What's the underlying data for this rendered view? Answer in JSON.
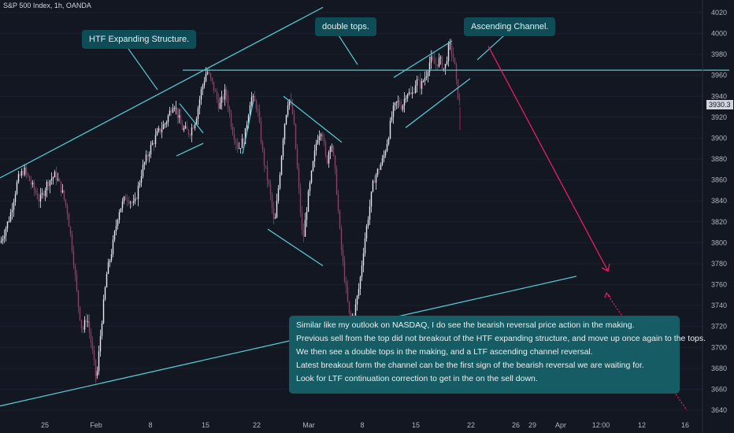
{
  "header": {
    "symbol": "S&P 500 Index, 1h, OANDA"
  },
  "callouts": {
    "htf": "HTF Expanding Structure.",
    "double_tops": "double tops.",
    "channel": "Ascending Channel."
  },
  "notes": [
    "Similar like my outlook on NASDAQ, I do see the bearish reversal price action in the making.",
    "Previous sell from the top did not breakout of the HTF expanding structure, and move up once again to the tops.",
    "We then see a double tops in the making, and a LTF ascending channel reversal.",
    "Latest breakout form the channel can be the first sign of the bearish reversal we are waiting for.",
    "Look for LTF continuation correction to get in the on the sell down."
  ],
  "colors": {
    "background": "#131722",
    "candle_up": "#e9e9ee",
    "candle_down": "#d81b60",
    "trendline": "#53c6d0",
    "projection": "#e91e63",
    "axis_text": "#b2b5be"
  },
  "chart_data": {
    "type": "candlestick",
    "title": "S&P 500 Index, 1h, OANDA",
    "last_price_label": "3930.3",
    "y_range": [
      3635,
      4025
    ],
    "y_ticks": [
      3640,
      3660,
      3680,
      3700,
      3720,
      3740,
      3760,
      3780,
      3800,
      3820,
      3840,
      3860,
      3880,
      3900,
      3920,
      3940,
      3960,
      3980,
      4000,
      4020
    ],
    "x_ticks": [
      "25",
      "Feb",
      "8",
      "15",
      "22",
      "Mar",
      "8",
      "15",
      "22",
      "26",
      "29",
      "Apr",
      "12:00",
      "12",
      "16"
    ],
    "key_level": 3965,
    "price_path": [
      [
        0,
        3800
      ],
      [
        12,
        3825
      ],
      [
        22,
        3860
      ],
      [
        30,
        3870
      ],
      [
        40,
        3855
      ],
      [
        50,
        3840
      ],
      [
        60,
        3858
      ],
      [
        70,
        3865
      ],
      [
        78,
        3850
      ],
      [
        85,
        3830
      ],
      [
        92,
        3790
      ],
      [
        98,
        3745
      ],
      [
        104,
        3715
      ],
      [
        110,
        3730
      ],
      [
        116,
        3700
      ],
      [
        122,
        3668
      ],
      [
        128,
        3720
      ],
      [
        135,
        3770
      ],
      [
        142,
        3795
      ],
      [
        150,
        3830
      ],
      [
        160,
        3845
      ],
      [
        170,
        3835
      ],
      [
        180,
        3870
      ],
      [
        190,
        3890
      ],
      [
        200,
        3905
      ],
      [
        210,
        3915
      ],
      [
        220,
        3935
      ],
      [
        230,
        3910
      ],
      [
        240,
        3905
      ],
      [
        248,
        3918
      ],
      [
        255,
        3945
      ],
      [
        262,
        3965
      ],
      [
        270,
        3950
      ],
      [
        278,
        3930
      ],
      [
        286,
        3945
      ],
      [
        294,
        3910
      ],
      [
        302,
        3890
      ],
      [
        310,
        3900
      ],
      [
        318,
        3940
      ],
      [
        326,
        3930
      ],
      [
        334,
        3880
      ],
      [
        342,
        3850
      ],
      [
        348,
        3815
      ],
      [
        354,
        3860
      ],
      [
        360,
        3910
      ],
      [
        366,
        3940
      ],
      [
        372,
        3920
      ],
      [
        378,
        3860
      ],
      [
        384,
        3800
      ],
      [
        390,
        3840
      ],
      [
        396,
        3870
      ],
      [
        402,
        3900
      ],
      [
        408,
        3910
      ],
      [
        414,
        3875
      ],
      [
        420,
        3900
      ],
      [
        426,
        3860
      ],
      [
        432,
        3800
      ],
      [
        438,
        3760
      ],
      [
        444,
        3725
      ],
      [
        450,
        3735
      ],
      [
        456,
        3760
      ],
      [
        462,
        3800
      ],
      [
        468,
        3830
      ],
      [
        474,
        3860
      ],
      [
        480,
        3870
      ],
      [
        486,
        3880
      ],
      [
        492,
        3900
      ],
      [
        498,
        3925
      ],
      [
        504,
        3935
      ],
      [
        510,
        3930
      ],
      [
        516,
        3945
      ],
      [
        522,
        3940
      ],
      [
        528,
        3955
      ],
      [
        534,
        3950
      ],
      [
        540,
        3960
      ],
      [
        546,
        3975
      ],
      [
        552,
        3970
      ],
      [
        558,
        3975
      ],
      [
        564,
        3965
      ],
      [
        570,
        3990
      ],
      [
        576,
        3975
      ],
      [
        580,
        3945
      ],
      [
        584,
        3930
      ]
    ],
    "trendlines": [
      {
        "from": [
          0,
          3862
        ],
        "to": [
          410,
          4025
        ]
      },
      {
        "from": [
          0,
          3644
        ],
        "to": [
          732,
          3768
        ]
      },
      {
        "from": [
          232,
          3965
        ],
        "to": [
          926,
          3965
        ]
      },
      {
        "from": [
          228,
          3933
        ],
        "to": [
          258,
          3905
        ]
      },
      {
        "from": [
          224,
          3883
        ],
        "to": [
          258,
          3895
        ]
      },
      {
        "from": [
          308,
          3885
        ],
        "to": [
          322,
          3937
        ]
      },
      {
        "from": [
          360,
          3940
        ],
        "to": [
          434,
          3896
        ]
      },
      {
        "from": [
          340,
          3813
        ],
        "to": [
          410,
          3778
        ]
      },
      {
        "from": [
          500,
          3958
        ],
        "to": [
          574,
          3993
        ]
      },
      {
        "from": [
          515,
          3910
        ],
        "to": [
          597,
          3957
        ]
      }
    ],
    "projection": {
      "from": [
        620,
        3988
      ],
      "to": [
        772,
        3773
      ],
      "extend_to": [
        872,
        3640
      ]
    }
  }
}
